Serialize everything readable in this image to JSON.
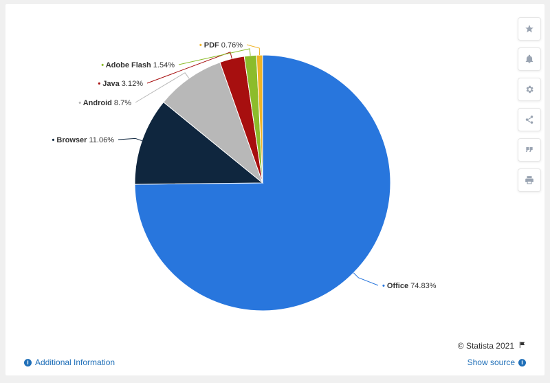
{
  "chart_data": {
    "type": "pie",
    "title": "",
    "slices": [
      {
        "name": "Office",
        "value": 74.83,
        "label": "74.83%",
        "color": "#2876dd"
      },
      {
        "name": "Browser",
        "value": 11.06,
        "label": "11.06%",
        "color": "#0f263e"
      },
      {
        "name": "Android",
        "value": 8.7,
        "label": "8.7%",
        "color": "#b8b8b8"
      },
      {
        "name": "Java",
        "value": 3.12,
        "label": "3.12%",
        "color": "#a70f0f"
      },
      {
        "name": "Adobe Flash",
        "value": 1.54,
        "label": "1.54%",
        "color": "#8cbc2b"
      },
      {
        "name": "PDF",
        "value": 0.76,
        "label": "0.76%",
        "color": "#f0b428"
      }
    ]
  },
  "toolbar": {
    "icons": [
      "star-icon",
      "bell-icon",
      "gear-icon",
      "share-icon",
      "quote-icon",
      "print-icon"
    ]
  },
  "footer": {
    "copyright": "© Statista 2021",
    "additional_info": "Additional Information",
    "show_source": "Show source"
  }
}
